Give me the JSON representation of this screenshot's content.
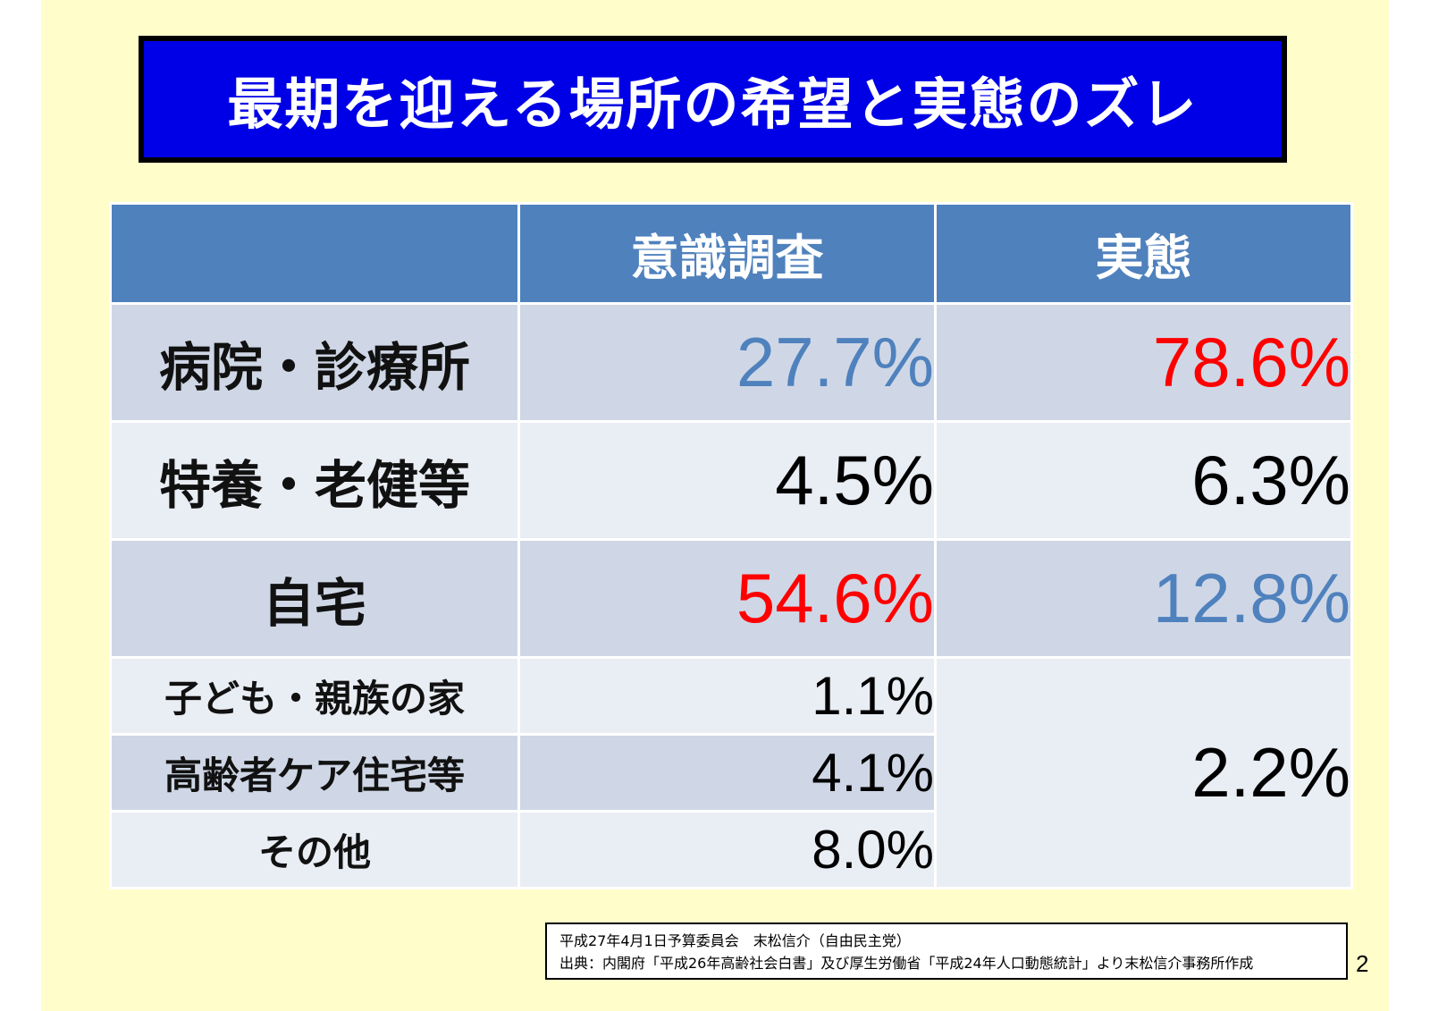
{
  "title": "最期を迎える場所の希望と実態のズレ",
  "table": {
    "headers": [
      "",
      "意識調査",
      "実態"
    ],
    "rows": [
      {
        "label": "病院・診療所",
        "survey": "27.7%",
        "actual": "78.6%"
      },
      {
        "label": "特養・老健等",
        "survey": "4.5%",
        "actual": "6.3%"
      },
      {
        "label": "自宅",
        "survey": "54.6%",
        "actual": "12.8%"
      },
      {
        "label": "子ども・親族の家",
        "survey": "1.1%"
      },
      {
        "label": "高齢者ケア住宅等",
        "survey": "4.1%"
      },
      {
        "label": "その他",
        "survey": "8.0%"
      }
    ],
    "merged_actual": "2.2%"
  },
  "source": {
    "line1": "平成27年4月1日予算委員会　末松信介（自由民主党）",
    "line2": "出典：内閣府「平成26年高齢社会白書」及び厚生労働省「平成24年人口動態統計」より末松信介事務所作成"
  },
  "page_number": "2",
  "colors": {
    "title_bg": "#0000e6",
    "header_bg": "#4f81bd",
    "highlight_red": "#ff0000",
    "highlight_blue": "#4f81bd",
    "slide_bg": "#fffecb"
  }
}
